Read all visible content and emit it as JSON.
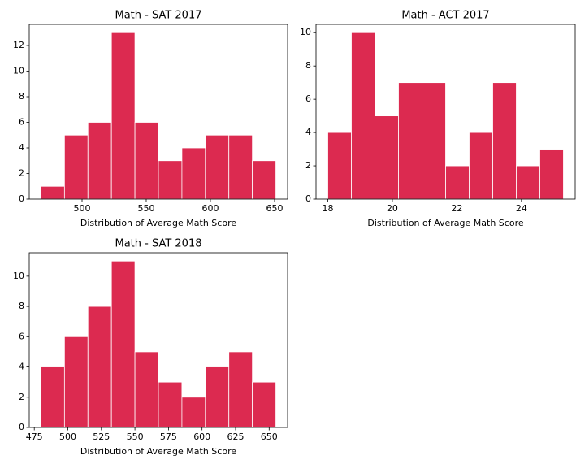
{
  "chart_data": [
    {
      "type": "histogram",
      "title": "Math - SAT 2017",
      "xlabel": "Distribution of Average Math Score",
      "bins": [
        468,
        486.3,
        504.6,
        522.9,
        541.2,
        559.5,
        577.8,
        596.1,
        614.4,
        632.7,
        651
      ],
      "values": [
        1,
        5,
        6,
        13,
        6,
        3,
        4,
        5,
        5,
        3
      ],
      "color": "#dc2a50",
      "xlim": [
        458.85,
        660.15
      ],
      "xticks": [
        500,
        550,
        600,
        650
      ],
      "ylim": [
        0,
        13.65
      ],
      "yticks": [
        0,
        2,
        4,
        6,
        8,
        10,
        12
      ]
    },
    {
      "type": "histogram",
      "title": "Math - ACT 2017",
      "xlabel": "Distribution of Average Math Score",
      "bins": [
        18,
        18.73,
        19.46,
        20.19,
        20.92,
        21.65,
        22.38,
        23.11,
        23.84,
        24.57,
        25.3
      ],
      "values": [
        4,
        10,
        5,
        7,
        7,
        2,
        4,
        7,
        2,
        3
      ],
      "color": "#dc2a50",
      "xlim": [
        17.635,
        25.665
      ],
      "xticks": [
        18,
        20,
        22,
        24
      ],
      "ylim": [
        0,
        10.5
      ],
      "yticks": [
        0,
        2,
        4,
        6,
        8,
        10
      ]
    },
    {
      "type": "histogram",
      "title": "Math - SAT 2018",
      "xlabel": "Distribution of Average Math Score",
      "bins": [
        480,
        497.5,
        515,
        532.5,
        550,
        567.5,
        585,
        602.5,
        620,
        637.5,
        655
      ],
      "values": [
        4,
        6,
        8,
        11,
        5,
        3,
        2,
        4,
        5,
        3
      ],
      "color": "#dc2a50",
      "xlim": [
        471.25,
        663.75
      ],
      "xticks": [
        475,
        500,
        525,
        550,
        575,
        600,
        625,
        650
      ],
      "ylim": [
        0,
        11.55
      ],
      "yticks": [
        0,
        2,
        4,
        6,
        8,
        10
      ]
    }
  ]
}
